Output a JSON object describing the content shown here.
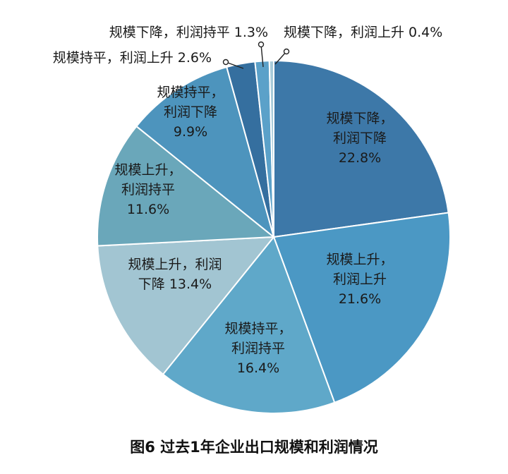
{
  "chart_data": {
    "type": "pie",
    "caption": "图6  过去1年企业出口规模和利润情况",
    "categories": [
      "规模下降，利润下降",
      "规模上升，利润上升",
      "规模持平，利润持平",
      "规模上升，利润下降",
      "规模上升，利润持平",
      "规模持平，利润下降",
      "规模持平，利润上升",
      "规模下降，利润持平",
      "规模下降，利润上升"
    ],
    "values": [
      22.8,
      21.6,
      16.4,
      13.4,
      11.6,
      9.9,
      2.6,
      1.3,
      0.4
    ],
    "label_lines": [
      [
        "规模下降，",
        "利润下降",
        "22.8%"
      ],
      [
        "规模上升，",
        "利润上升",
        "21.6%"
      ],
      [
        "规模持平，",
        "利润持平",
        "16.4%"
      ],
      [
        "规模上升，利润",
        "下降 13.4%"
      ],
      [
        "规模上升，",
        "利润持平",
        "11.6%"
      ],
      [
        "规模持平，",
        "利润下降",
        "9.9%"
      ],
      [
        "规模持平，利润上升 2.6%"
      ],
      [
        "规模下降，利润持平 1.3%"
      ],
      [
        "规模下降，利润上升 0.4%"
      ]
    ],
    "colors": [
      "#3d78a8",
      "#4b98c4",
      "#5fa8c9",
      "#a2c5d2",
      "#6aa7ba",
      "#4d94bd",
      "#356f9f",
      "#5ba1c9",
      "#a8cbda"
    ]
  }
}
